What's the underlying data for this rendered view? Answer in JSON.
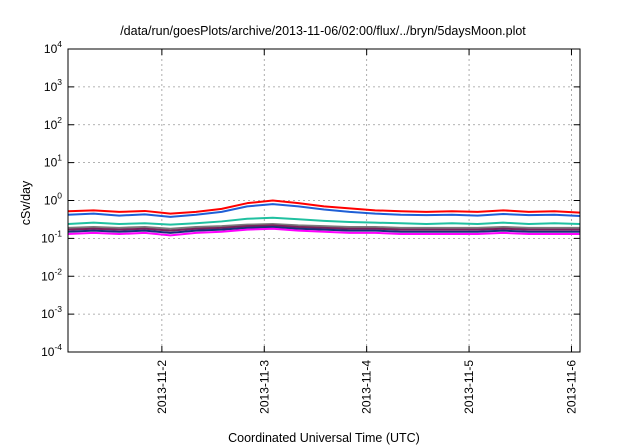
{
  "chart_data": {
    "type": "line",
    "title": "/data/run/goesPlots/archive/2013-11-06/02:00/flux/../bryn/5daysMoon.plot",
    "xlabel": "Coordinated Universal Time (UTC)",
    "ylabel": "cSv/day",
    "yscale": "log",
    "ylim": [
      0.0001,
      10000
    ],
    "xlim": [
      "2013-11-01T02:00",
      "2013-11-06T02:00"
    ],
    "grid": true,
    "yticks": [
      {
        "base": "10",
        "exp": "4"
      },
      {
        "base": "10",
        "exp": "3"
      },
      {
        "base": "10",
        "exp": "2"
      },
      {
        "base": "10",
        "exp": "1"
      },
      {
        "base": "10",
        "exp": "0"
      },
      {
        "base": "10",
        "exp": "-1"
      },
      {
        "base": "10",
        "exp": "-2"
      },
      {
        "base": "10",
        "exp": "-3"
      },
      {
        "base": "10",
        "exp": "-4"
      }
    ],
    "xticks": [
      "2013-11-2",
      "2013-11-3",
      "2013-11-4",
      "2013-11-5",
      "2013-11-6"
    ],
    "x": [
      "2013-11-01T02:00",
      "2013-11-01T08:00",
      "2013-11-01T14:00",
      "2013-11-01T20:00",
      "2013-11-02T02:00",
      "2013-11-02T08:00",
      "2013-11-02T14:00",
      "2013-11-02T20:00",
      "2013-11-03T02:00",
      "2013-11-03T08:00",
      "2013-11-03T14:00",
      "2013-11-03T20:00",
      "2013-11-04T02:00",
      "2013-11-04T08:00",
      "2013-11-04T14:00",
      "2013-11-04T20:00",
      "2013-11-05T02:00",
      "2013-11-05T08:00",
      "2013-11-05T14:00",
      "2013-11-05T20:00",
      "2013-11-06T02:00"
    ],
    "series": [
      {
        "color": "#ff0000",
        "values": [
          0.52,
          0.55,
          0.5,
          0.53,
          0.45,
          0.5,
          0.6,
          0.85,
          1.0,
          0.85,
          0.7,
          0.62,
          0.55,
          0.52,
          0.5,
          0.52,
          0.5,
          0.55,
          0.5,
          0.52,
          0.48
        ]
      },
      {
        "color": "#1f5fd6",
        "values": [
          0.42,
          0.45,
          0.4,
          0.43,
          0.37,
          0.42,
          0.5,
          0.7,
          0.8,
          0.7,
          0.58,
          0.5,
          0.45,
          0.42,
          0.41,
          0.42,
          0.4,
          0.44,
          0.41,
          0.42,
          0.39
        ]
      },
      {
        "color": "#20c0a0",
        "values": [
          0.24,
          0.26,
          0.24,
          0.25,
          0.23,
          0.25,
          0.28,
          0.33,
          0.35,
          0.32,
          0.29,
          0.27,
          0.26,
          0.25,
          0.24,
          0.25,
          0.24,
          0.26,
          0.24,
          0.25,
          0.24
        ]
      },
      {
        "color": "#7a7a7a",
        "values": [
          0.19,
          0.2,
          0.19,
          0.2,
          0.18,
          0.2,
          0.21,
          0.23,
          0.24,
          0.22,
          0.21,
          0.2,
          0.2,
          0.19,
          0.19,
          0.19,
          0.19,
          0.2,
          0.19,
          0.19,
          0.19
        ]
      },
      {
        "color": "#7a1f5a",
        "values": [
          0.17,
          0.18,
          0.17,
          0.18,
          0.16,
          0.18,
          0.19,
          0.21,
          0.22,
          0.2,
          0.19,
          0.18,
          0.18,
          0.17,
          0.17,
          0.17,
          0.17,
          0.18,
          0.17,
          0.17,
          0.17
        ]
      },
      {
        "color": "#16307a",
        "values": [
          0.15,
          0.16,
          0.15,
          0.16,
          0.14,
          0.16,
          0.17,
          0.19,
          0.2,
          0.18,
          0.17,
          0.16,
          0.16,
          0.15,
          0.15,
          0.15,
          0.15,
          0.16,
          0.15,
          0.15,
          0.15
        ]
      },
      {
        "color": "#ff00ff",
        "values": [
          0.13,
          0.14,
          0.13,
          0.14,
          0.12,
          0.14,
          0.15,
          0.17,
          0.18,
          0.16,
          0.15,
          0.14,
          0.14,
          0.13,
          0.13,
          0.13,
          0.13,
          0.14,
          0.13,
          0.13,
          0.13
        ]
      }
    ]
  }
}
